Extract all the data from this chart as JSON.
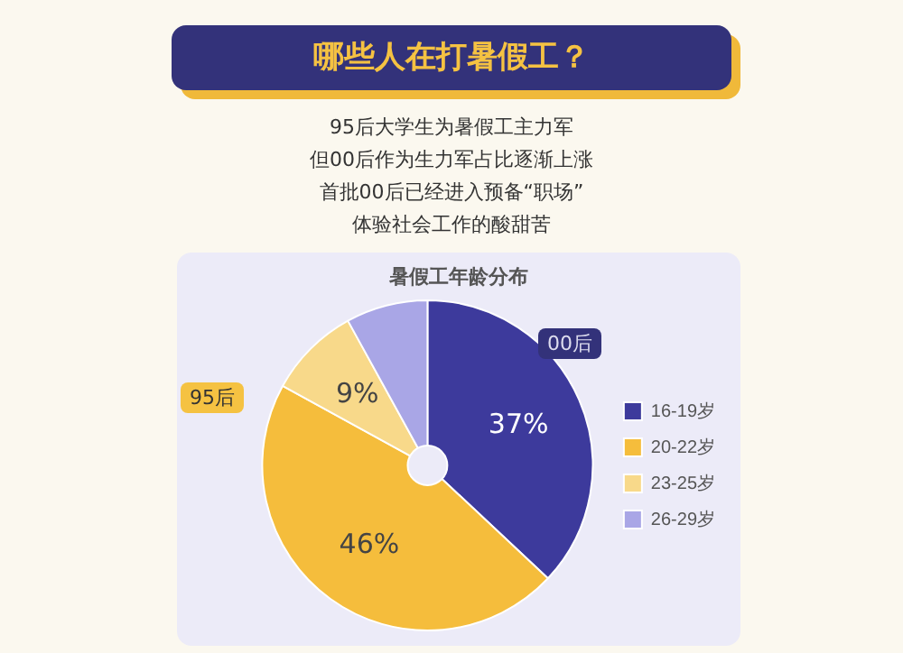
{
  "chart_data": {
    "type": "pie",
    "title": "哪些人在打暑假工？",
    "categories": [
      "16-19岁",
      "20-22岁",
      "23-25岁",
      "26-29岁"
    ],
    "values": [
      37,
      46,
      9,
      8
    ],
    "value_labels": [
      "37%",
      "46%",
      "9%",
      null
    ],
    "colors": [
      "#3d3a9c",
      "#f5bd3c",
      "#f8d98a",
      "#a9a6e6"
    ],
    "legend": "right",
    "annotations": [
      "95后大学生为暑假工主力军",
      "但00后作为生力军占比逐渐上涨",
      "首批00后已经进入预备“职场”",
      "体验社会工作的酸甜苦",
      "暑假工年龄分布",
      "95后",
      "00后"
    ]
  }
}
